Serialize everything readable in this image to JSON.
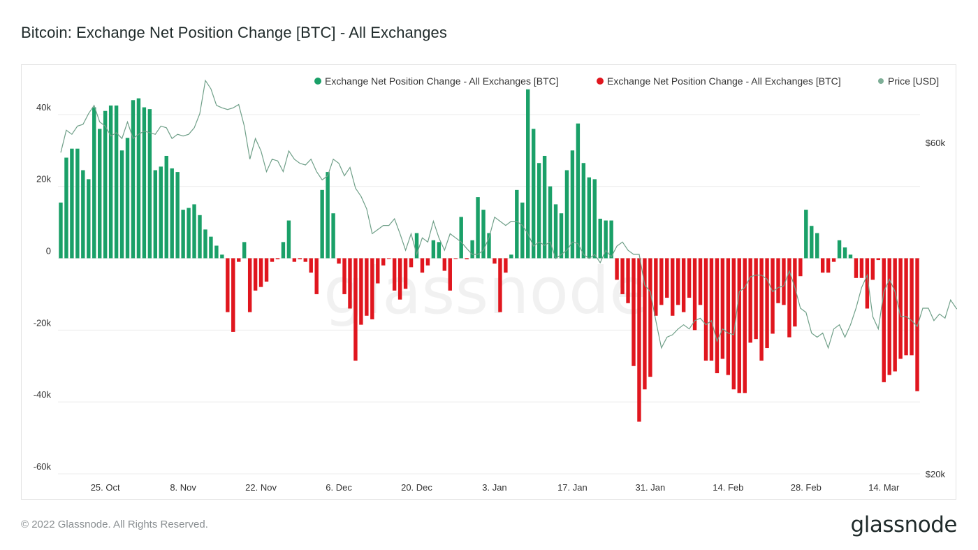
{
  "page": {
    "title": "Bitcoin: Exchange Net Position Change [BTC] - All Exchanges",
    "copyright": "© 2022 Glassnode. All Rights Reserved.",
    "logo": "glassnode",
    "watermark": "glassnode"
  },
  "chart_data": {
    "type": "bar",
    "title": "Bitcoin: Exchange Net Position Change [BTC] - All Exchanges",
    "legend": [
      {
        "label": "Exchange Net Position Change - All Exchanges [BTC]",
        "color": "#1aa068"
      },
      {
        "label": "Exchange Net Position Change - All Exchanges [BTC]",
        "color": "#e0161e"
      },
      {
        "label": "Price [USD]",
        "color": "#5c9a7c"
      }
    ],
    "colors": {
      "positive": "#1aa068",
      "negative": "#e0161e",
      "price": "#6f9f88",
      "grid": "#ececec"
    },
    "left_axis": {
      "ylim": [
        -60000,
        46000
      ],
      "ticks": [
        40000,
        20000,
        0,
        -20000,
        -40000,
        -60000
      ],
      "tick_labels": [
        "40k",
        "20k",
        "0",
        "-20k",
        "-40k",
        "-60k"
      ]
    },
    "right_axis": {
      "ylim": [
        20000,
        66000
      ],
      "ticks": [
        60000,
        20000
      ],
      "tick_labels": [
        "$60k",
        "$20k"
      ]
    },
    "x_axis": {
      "start_date": "2021-10-17",
      "ticks": [
        {
          "day": 8,
          "label": "25. Oct"
        },
        {
          "day": 22,
          "label": "8. Nov"
        },
        {
          "day": 36,
          "label": "22. Nov"
        },
        {
          "day": 50,
          "label": "6. Dec"
        },
        {
          "day": 64,
          "label": "20. Dec"
        },
        {
          "day": 78,
          "label": "3. Jan"
        },
        {
          "day": 92,
          "label": "17. Jan"
        },
        {
          "day": 106,
          "label": "31. Jan"
        },
        {
          "day": 120,
          "label": "14. Feb"
        },
        {
          "day": 134,
          "label": "28. Feb"
        },
        {
          "day": 148,
          "label": "14. Mar"
        }
      ]
    },
    "series": [
      {
        "name": "Exchange Net Position Change - All Exchanges [BTC]",
        "unit": "BTC",
        "values": [
          15500,
          28000,
          30500,
          30500,
          24500,
          22000,
          42000,
          36000,
          41000,
          42500,
          42500,
          30000,
          33500,
          44000,
          44500,
          42000,
          41500,
          24500,
          25500,
          28500,
          25000,
          24000,
          13500,
          14000,
          15000,
          12000,
          8000,
          6000,
          3500,
          1000,
          -15000,
          -20500,
          -1000,
          4500,
          -15000,
          -9000,
          -8000,
          -6500,
          -1000,
          -300,
          4500,
          10500,
          -1000,
          -300,
          -1000,
          -4000,
          -10000,
          19000,
          24000,
          12500,
          -1500,
          -10000,
          -14000,
          -28500,
          -18500,
          -16000,
          -17000,
          -7000,
          -2000,
          -200,
          -9000,
          -11500,
          -8500,
          -2500,
          7000,
          -4000,
          -2000,
          5000,
          4500,
          -3500,
          -9000,
          -200,
          11500,
          -300,
          5000,
          17000,
          13500,
          7000,
          -1500,
          -15000,
          -4000,
          1000,
          19000,
          15500,
          47000,
          36000,
          26500,
          28500,
          20000,
          15000,
          12500,
          24500,
          30000,
          37500,
          26500,
          22500,
          22000,
          11000,
          10500,
          10500,
          -6000,
          -10000,
          -12500,
          -30000,
          -45500,
          -36500,
          -33000,
          -16000,
          -13000,
          -11000,
          -16000,
          -13000,
          -15000,
          -11000,
          -20000,
          -13000,
          -28500,
          -28500,
          -32000,
          -28000,
          -32500,
          -36500,
          -37500,
          -37500,
          -23500,
          -22500,
          -28500,
          -25000,
          -21000,
          -12500,
          -13000,
          -22000,
          -19000,
          -5000,
          13500,
          9000,
          7000,
          -4000,
          -4000,
          -1000,
          5000,
          3000,
          1000,
          -5500,
          -5500,
          -14000,
          -6000,
          -500,
          -34500,
          -32500,
          -31500,
          -28000,
          -27000,
          -27000,
          -37000
        ],
        "color_positive": "#1aa068",
        "color_negative": "#e0161e"
      },
      {
        "name": "Price [USD]",
        "unit": "USD",
        "values": [
          58800,
          61500,
          61000,
          62000,
          62200,
          63500,
          64500,
          62500,
          62000,
          60800,
          61200,
          60500,
          62500,
          60500,
          61000,
          61400,
          61200,
          61000,
          62000,
          61800,
          60500,
          61000,
          60800,
          61000,
          61800,
          63500,
          67500,
          66500,
          64500,
          64200,
          64000,
          64200,
          64600,
          62000,
          58000,
          60500,
          59000,
          56500,
          58000,
          57800,
          56500,
          59000,
          58000,
          57500,
          57300,
          58000,
          56500,
          55500,
          56000,
          58000,
          57500,
          56000,
          57000,
          54500,
          53500,
          52000,
          49000,
          49500,
          50000,
          50000,
          50800,
          49000,
          47000,
          49000,
          46500,
          48500,
          48000,
          50500,
          48500,
          47000,
          49000,
          48500,
          48000,
          47200,
          46500,
          46500,
          47000,
          48500,
          51000,
          50500,
          50000,
          50500,
          50500,
          50000,
          49000,
          47500,
          48000,
          47600,
          48000,
          46000,
          46500,
          47000,
          48000,
          47800,
          46500,
          46000,
          46500,
          45500,
          47000,
          46200,
          47500,
          48000,
          47000,
          46500,
          46500,
          42800,
          42000,
          38500,
          35200,
          36500,
          36800,
          37500,
          38000,
          37500,
          38500,
          38800,
          38000,
          38500,
          36000,
          37500,
          37000,
          36800,
          42000,
          42500,
          43800,
          44000,
          44000,
          43500,
          42000,
          42500,
          42700,
          44500,
          42500,
          40000,
          39500,
          37000,
          36500,
          37000,
          35200,
          37500,
          38000,
          36500,
          38000,
          40000,
          42500,
          44000,
          39000,
          37500,
          42000,
          43500,
          42000,
          39000,
          39000,
          38500,
          37800,
          40000,
          40000,
          38500,
          39300,
          38800,
          41000,
          40000,
          39500,
          38000,
          39000,
          41000,
          41500,
          41000,
          41500,
          41000
        ]
      }
    ]
  }
}
